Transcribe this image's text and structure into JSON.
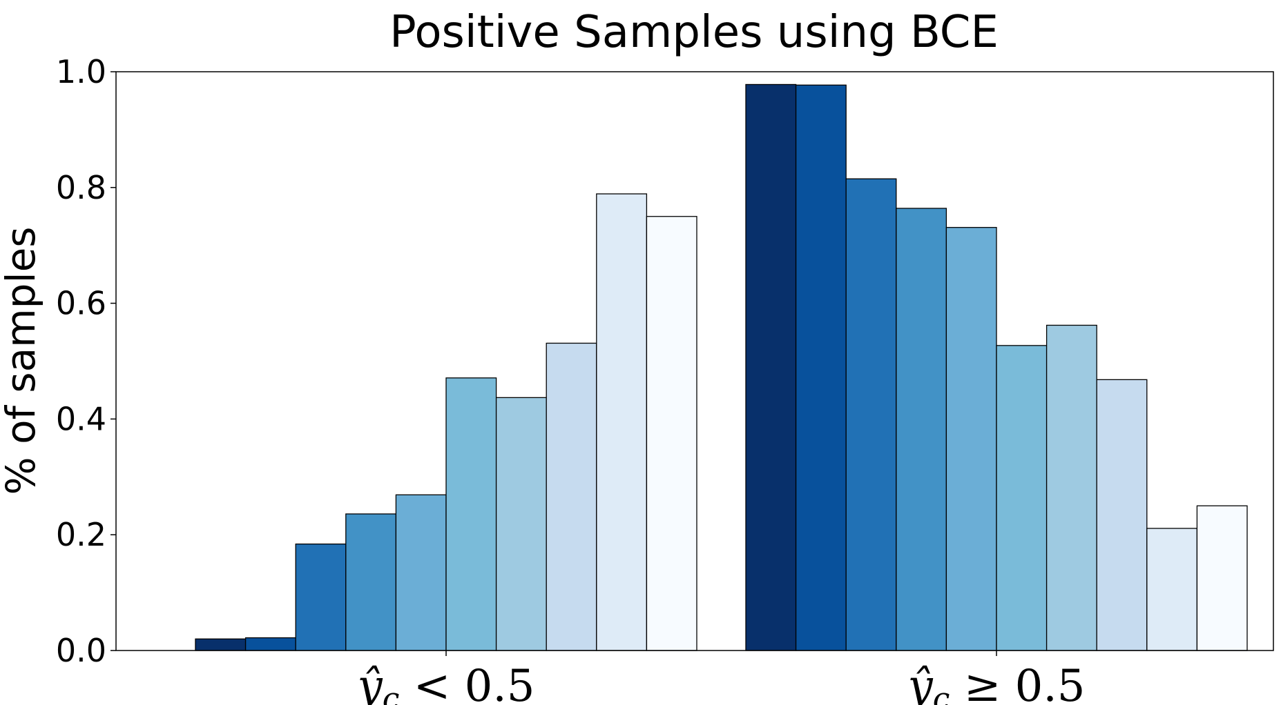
{
  "chart_data": {
    "type": "bar",
    "title": "Positive Samples using BCE",
    "ylabel": "% of samples",
    "ylim": [
      0,
      1.0
    ],
    "yticks": [
      "0.0",
      "0.2",
      "0.4",
      "0.6",
      "0.8",
      "1.0"
    ],
    "categories": [
      {
        "base": "ŷ",
        "sub": "c",
        "rel": " < 0.5"
      },
      {
        "base": "ŷ",
        "sub": "c",
        "rel": " ≥ 0.5"
      }
    ],
    "colors": [
      "#08306b",
      "#08519c",
      "#2171b5",
      "#4292c6",
      "#6baed6",
      "#7abbd9",
      "#9ecae1",
      "#c6dbef",
      "#deebf7",
      "#f7fbff"
    ],
    "groups": [
      {
        "values": [
          0.02,
          0.022,
          0.184,
          0.236,
          0.269,
          0.471,
          0.437,
          0.531,
          0.789,
          0.75
        ]
      },
      {
        "values": [
          0.978,
          0.977,
          0.815,
          0.764,
          0.731,
          0.527,
          0.562,
          0.468,
          0.211,
          0.25
        ]
      }
    ],
    "grid": false,
    "legend": "none"
  }
}
